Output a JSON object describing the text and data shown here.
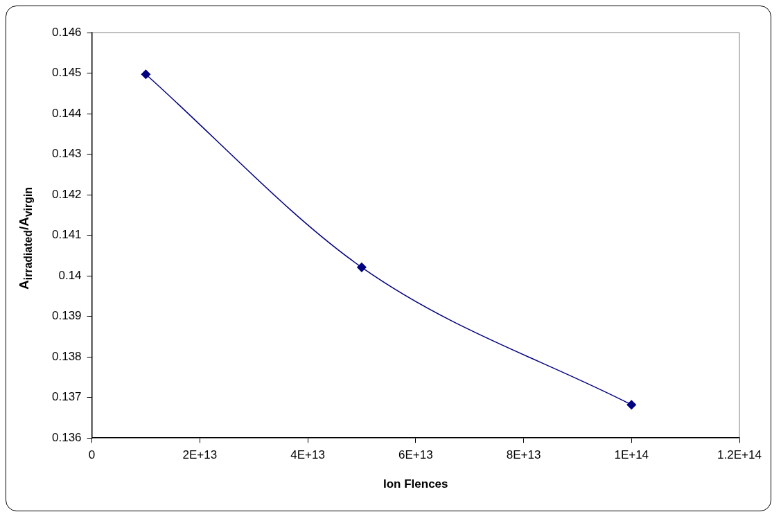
{
  "chart_data": {
    "type": "line",
    "xlabel": "Ion Flences",
    "ylabel": "A$_{irradiated}$/A$_{virgin}$",
    "x": [
      10000000000000.0,
      50000000000000.0,
      100000000000000.0
    ],
    "series": [
      {
        "color": "#000080",
        "values": [
          0.14497,
          0.14021,
          0.13682
        ]
      }
    ],
    "xlim": [
      0,
      120000000000000.0
    ],
    "xticks": [
      0,
      {
        "value": 20000000000000.0,
        "label": "2E+13"
      },
      {
        "value": 40000000000000.0,
        "label": "4E+13"
      },
      {
        "value": 60000000000000.0,
        "label": "6E+13"
      },
      {
        "value": 80000000000000.0,
        "label": "8E+13"
      },
      {
        "value": 100000000000000.0,
        "label": "1E+14"
      },
      {
        "value": 120000000000000.0,
        "label": "1.2E+14"
      }
    ],
    "ylim": [
      0.136,
      0.146
    ],
    "yticks": [
      0.136,
      0.137,
      0.138,
      0.139,
      0.14,
      0.141,
      0.142,
      0.143,
      0.144,
      0.145,
      0.146
    ],
    "grid": false,
    "legend": false,
    "marker": "diamond",
    "line_style": "solid"
  }
}
